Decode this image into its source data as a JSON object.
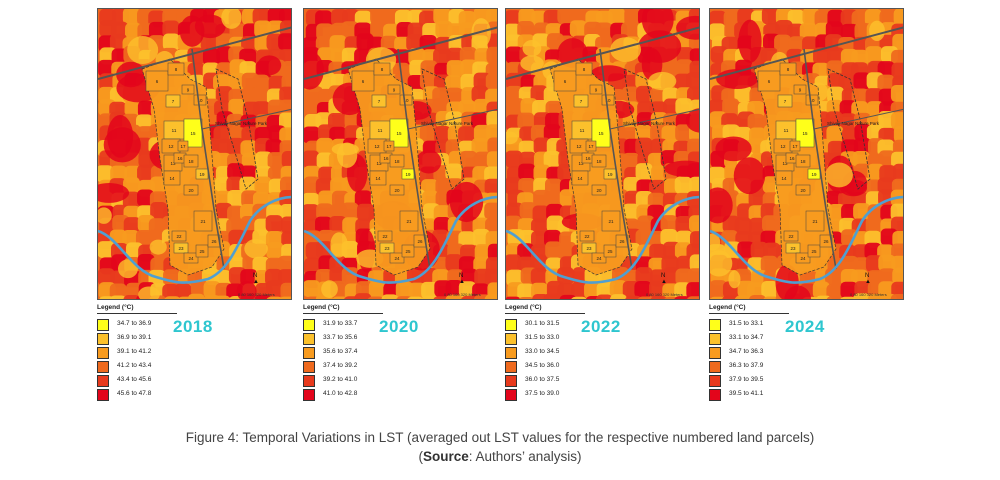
{
  "legend_title": "Legend (°C)",
  "maps": [
    {
      "year": "2018",
      "classes": [
        {
          "range": "34.7 to 36.9",
          "color": "#ffff1a"
        },
        {
          "range": "36.9 to 39.1",
          "color": "#fcc12c"
        },
        {
          "range": "39.1 to 41.2",
          "color": "#f89b1f"
        },
        {
          "range": "41.2 to 43.4",
          "color": "#ef6a1e"
        },
        {
          "range": "43.4 to 45.6",
          "color": "#e83a1d"
        },
        {
          "range": "45.6 to 47.8",
          "color": "#e3051b"
        }
      ]
    },
    {
      "year": "2020",
      "classes": [
        {
          "range": "31.9 to 33.7",
          "color": "#ffff1a"
        },
        {
          "range": "33.7 to 35.6",
          "color": "#fcc12c"
        },
        {
          "range": "35.6 to 37.4",
          "color": "#f89b1f"
        },
        {
          "range": "37.4 to 39.2",
          "color": "#ef6a1e"
        },
        {
          "range": "39.2 to 41.0",
          "color": "#e83a1d"
        },
        {
          "range": "41.0 to 42.8",
          "color": "#e3051b"
        }
      ]
    },
    {
      "year": "2022",
      "classes": [
        {
          "range": "30.1 to 31.5",
          "color": "#ffff1a"
        },
        {
          "range": "31.5 to 33.0",
          "color": "#fcc12c"
        },
        {
          "range": "33.0 to 34.5",
          "color": "#f89b1f"
        },
        {
          "range": "34.5 to 36.0",
          "color": "#ef6a1e"
        },
        {
          "range": "36.0 to 37.5",
          "color": "#e83a1d"
        },
        {
          "range": "37.5 to 39.0",
          "color": "#e3051b"
        }
      ]
    },
    {
      "year": "2024",
      "classes": [
        {
          "range": "31.5 to 33.1",
          "color": "#ffff1a"
        },
        {
          "range": "33.1 to 34.7",
          "color": "#fcc12c"
        },
        {
          "range": "34.7 to 36.3",
          "color": "#f89b1f"
        },
        {
          "range": "36.3 to 37.9",
          "color": "#ef6a1e"
        },
        {
          "range": "37.9 to 39.5",
          "color": "#e83a1d"
        },
        {
          "range": "39.5 to 41.1",
          "color": "#e3051b"
        }
      ]
    }
  ],
  "parcel_numbers": [
    "6",
    "7",
    "8",
    "9",
    "10",
    "11",
    "12",
    "13",
    "14",
    "15",
    "16",
    "17",
    "18",
    "19",
    "20",
    "21",
    "22",
    "23",
    "24",
    "25",
    "26"
  ],
  "map_labels": {
    "park": "Shivaji Nagar Nature Park",
    "north": "N",
    "scale_ticks": "0   80 160        320 Meters"
  },
  "caption": {
    "line1": "Figure 4: Temporal Variations in LST (averaged out LST values for the respective numbered land parcels)",
    "line2_open": "(",
    "line2_bold": "Source",
    "line2_rest": ": Authors’ analysis)"
  },
  "colors": {
    "year_text": "#2ec6cf",
    "river": "#4f9fd1",
    "road": "#555555"
  }
}
